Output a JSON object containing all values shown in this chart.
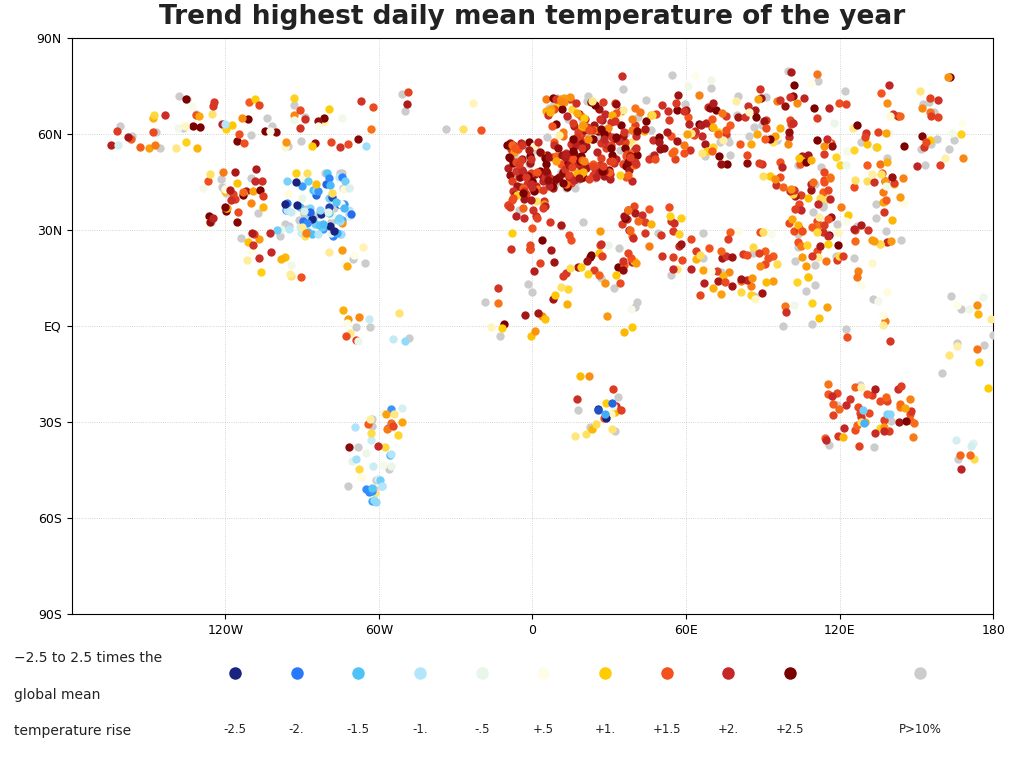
{
  "title": "Trend highest daily mean temperature of the year",
  "title_fontsize": 19,
  "background_color": "#ffffff",
  "land_color": "#f5f5f5",
  "ocean_color": "#ffffff",
  "coastline_color": "#aaaaaa",
  "gridline_color": "#bbbbbb",
  "colorbar_values": [
    -2.5,
    -2.0,
    -1.5,
    -1.0,
    -0.5,
    0.5,
    1.0,
    1.5,
    2.0,
    2.5
  ],
  "colorbar_labels": [
    "-2.5",
    "-2.",
    "-1.5",
    "-1.",
    "-.5",
    "+.5",
    "+1.",
    "+1.5",
    "+2.",
    "+2.5"
  ],
  "colorbar_colors": [
    "#1a237e",
    "#2979ff",
    "#4fc3f7",
    "#b3e5fc",
    "#e8f5e9",
    "#fffde7",
    "#ffcc02",
    "#f4511e",
    "#c62828",
    "#7b0000"
  ],
  "insig_color": "#cccccc",
  "legend_text_line1": "−2.5 to 2.5 times the",
  "legend_text_line2": "global mean",
  "legend_text_line3": "temperature rise",
  "p10_label": "P>10%",
  "marker_size": 6,
  "dpi": 100,
  "fig_width": 10.24,
  "fig_height": 7.58
}
